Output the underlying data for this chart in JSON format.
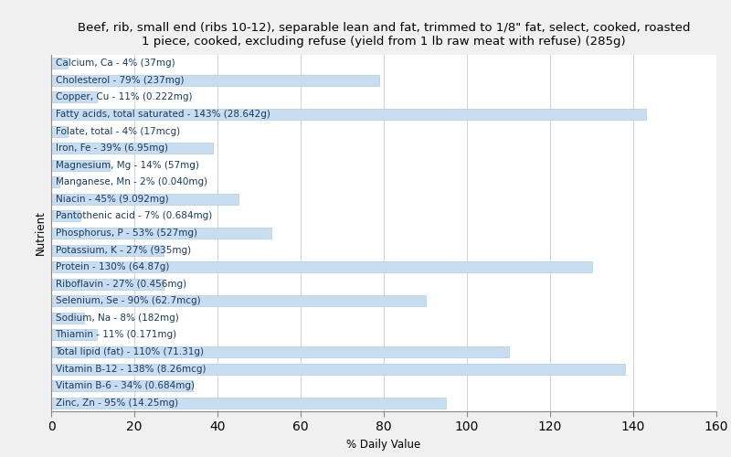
{
  "title": "Beef, rib, small end (ribs 10-12), separable lean and fat, trimmed to 1/8\" fat, select, cooked, roasted\n1 piece, cooked, excluding refuse (yield from 1 lb raw meat with refuse) (285g)",
  "xlabel": "% Daily Value",
  "ylabel": "Nutrient",
  "xlim": [
    0,
    160
  ],
  "xticks": [
    0,
    20,
    40,
    60,
    80,
    100,
    120,
    140,
    160
  ],
  "bar_color": "#c8ddf0",
  "bar_edge_color": "#b0cce0",
  "bg_color": "#f0f0f0",
  "plot_bg_color": "#ffffff",
  "title_fontsize": 9.5,
  "label_fontsize": 7.5,
  "text_color": "#1a3a5c",
  "nutrients": [
    {
      "name": "Calcium, Ca - 4% (37mg)",
      "value": 4
    },
    {
      "name": "Cholesterol - 79% (237mg)",
      "value": 79
    },
    {
      "name": "Copper, Cu - 11% (0.222mg)",
      "value": 11
    },
    {
      "name": "Fatty acids, total saturated - 143% (28.642g)",
      "value": 143
    },
    {
      "name": "Folate, total - 4% (17mcg)",
      "value": 4
    },
    {
      "name": "Iron, Fe - 39% (6.95mg)",
      "value": 39
    },
    {
      "name": "Magnesium, Mg - 14% (57mg)",
      "value": 14
    },
    {
      "name": "Manganese, Mn - 2% (0.040mg)",
      "value": 2
    },
    {
      "name": "Niacin - 45% (9.092mg)",
      "value": 45
    },
    {
      "name": "Pantothenic acid - 7% (0.684mg)",
      "value": 7
    },
    {
      "name": "Phosphorus, P - 53% (527mg)",
      "value": 53
    },
    {
      "name": "Potassium, K - 27% (935mg)",
      "value": 27
    },
    {
      "name": "Protein - 130% (64.87g)",
      "value": 130
    },
    {
      "name": "Riboflavin - 27% (0.456mg)",
      "value": 27
    },
    {
      "name": "Selenium, Se - 90% (62.7mcg)",
      "value": 90
    },
    {
      "name": "Sodium, Na - 8% (182mg)",
      "value": 8
    },
    {
      "name": "Thiamin - 11% (0.171mg)",
      "value": 11
    },
    {
      "name": "Total lipid (fat) - 110% (71.31g)",
      "value": 110
    },
    {
      "name": "Vitamin B-12 - 138% (8.26mcg)",
      "value": 138
    },
    {
      "name": "Vitamin B-6 - 34% (0.684mg)",
      "value": 34
    },
    {
      "name": "Zinc, Zn - 95% (14.25mg)",
      "value": 95
    }
  ]
}
